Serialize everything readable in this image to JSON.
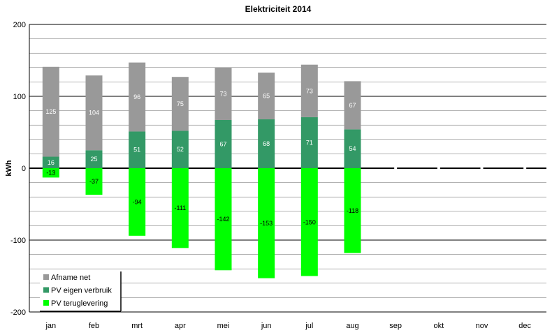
{
  "chart_data": {
    "type": "bar",
    "stacked": true,
    "title": "Elektriciteit 2014",
    "ylabel": "kWh",
    "xlabel": "",
    "ylim": [
      -200,
      200
    ],
    "ytick_labels": [
      "200",
      "100",
      "0",
      "-100",
      "-200"
    ],
    "categories": [
      "jan",
      "feb",
      "mrt",
      "apr",
      "mei",
      "jun",
      "jul",
      "aug",
      "sep",
      "okt",
      "nov",
      "dec"
    ],
    "series": [
      {
        "name": "Afname net",
        "color": "#999999",
        "label_color": "#ffffff",
        "values": [
          125,
          104,
          96,
          75,
          73,
          65,
          73,
          67,
          null,
          null,
          null,
          null
        ]
      },
      {
        "name": "PV eigen verbruik",
        "color": "#339966",
        "label_color": "#ffffff",
        "values": [
          16,
          25,
          51,
          52,
          67,
          68,
          71,
          54,
          null,
          null,
          null,
          null
        ]
      },
      {
        "name": "PV teruglevering",
        "color": "#00ff00",
        "label_color": "#000000",
        "values": [
          -13,
          -37,
          -94,
          -111,
          -142,
          -153,
          -150,
          -118,
          null,
          null,
          null,
          null
        ]
      }
    ],
    "grid": true,
    "legend_position": "bottom-left"
  }
}
